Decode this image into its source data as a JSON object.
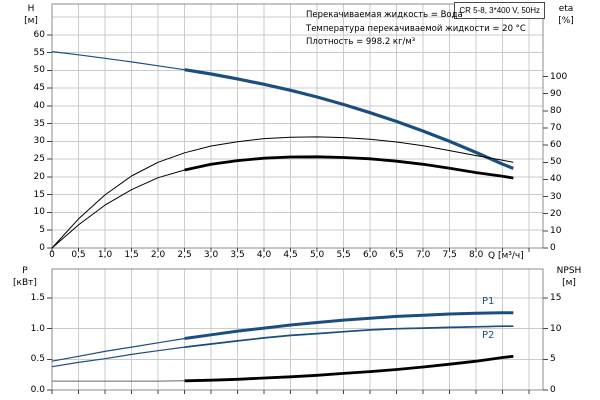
{
  "header": {
    "title": "CR 5-8, 3*400 V, 50Hz"
  },
  "info_lines": [
    "Перекачиваемая жидкость = Вода",
    "Температура перекачиваемой жидкости = 20 °C",
    "Плотность = 998.2 кг/м³"
  ],
  "curve_labels": {
    "p1": "P1",
    "p2": "P2"
  },
  "axes": {
    "h": {
      "name": "H",
      "unit": "[м]"
    },
    "eta": {
      "name": "eta",
      "unit": "[%]"
    },
    "q": {
      "label": "Q [м³/ч]"
    },
    "p": {
      "name": "P",
      "unit": "[кВт]"
    },
    "npsh": {
      "name": "NPSH",
      "unit": "[м]"
    }
  },
  "colors": {
    "curve_blue": "#1b4e80",
    "curve_black": "#000000",
    "npsh_thin": "#666666",
    "grid": "#cbcbcb",
    "frame": "#8c8c8c",
    "tick": "#444444",
    "text": "#000000"
  },
  "chart_data": [
    {
      "type": "line",
      "title": "Pump head and efficiency vs flow",
      "x_axis": {
        "label": "Q [м³/ч]",
        "min": 0,
        "max": 9.26,
        "tick_step": 0.5,
        "tick_labels": [
          "0",
          "0,5",
          "1,0",
          "1,5",
          "2,0",
          "2,5",
          "3,0",
          "3,5",
          "4,0",
          "4,5",
          "5,0",
          "5,5",
          "6,0",
          "6,5",
          "7,0",
          "7,5",
          "8,0"
        ]
      },
      "y_left": {
        "label": "H [м]",
        "min": 0,
        "max": 68.7,
        "ticks": [
          0,
          5,
          10,
          15,
          20,
          25,
          30,
          35,
          40,
          45,
          50,
          55,
          60
        ]
      },
      "y_right": {
        "label": "eta [%]",
        "min": 0,
        "max": 142,
        "ticks": [
          0,
          10,
          20,
          30,
          40,
          50,
          60,
          70,
          80,
          90,
          100
        ]
      },
      "grid": true,
      "series": [
        {
          "name": "H",
          "color": "blue",
          "y_scale": "h",
          "thick_from": 2.5,
          "points": [
            [
              0,
              55.3
            ],
            [
              0.5,
              54.4
            ],
            [
              1,
              53.4
            ],
            [
              1.5,
              52.4
            ],
            [
              2,
              51.3
            ],
            [
              2.5,
              50.2
            ],
            [
              3,
              49.0
            ],
            [
              3.5,
              47.6
            ],
            [
              4,
              46.1
            ],
            [
              4.5,
              44.4
            ],
            [
              5,
              42.5
            ],
            [
              5.5,
              40.4
            ],
            [
              6,
              38.1
            ],
            [
              6.5,
              35.6
            ],
            [
              7,
              32.9
            ],
            [
              7.5,
              30.0
            ],
            [
              8,
              26.9
            ],
            [
              8.5,
              23.6
            ],
            [
              8.7,
              22.4
            ]
          ]
        },
        {
          "name": "eta1",
          "color": "black",
          "y_scale": "eta",
          "thick_from": null,
          "points": [
            [
              0,
              0
            ],
            [
              0.5,
              17
            ],
            [
              1,
              31
            ],
            [
              1.5,
              42
            ],
            [
              2,
              50
            ],
            [
              2.5,
              55.5
            ],
            [
              3,
              59.5
            ],
            [
              3.5,
              62
            ],
            [
              4,
              63.8
            ],
            [
              4.5,
              64.6
            ],
            [
              5,
              64.8
            ],
            [
              5.5,
              64.4
            ],
            [
              6,
              63.4
            ],
            [
              6.5,
              61.8
            ],
            [
              7,
              59.6
            ],
            [
              7.5,
              56.8
            ],
            [
              8,
              53.9
            ],
            [
              8.5,
              51.2
            ],
            [
              8.7,
              50.0
            ]
          ]
        },
        {
          "name": "eta2",
          "color": "black",
          "y_scale": "eta",
          "thick_from": 2.5,
          "points": [
            [
              0,
              0
            ],
            [
              0.5,
              13.5
            ],
            [
              1,
              25
            ],
            [
              1.5,
              34
            ],
            [
              2,
              41
            ],
            [
              2.5,
              45.5
            ],
            [
              3,
              48.8
            ],
            [
              3.5,
              51
            ],
            [
              4,
              52.4
            ],
            [
              4.5,
              53.1
            ],
            [
              5,
              53.2
            ],
            [
              5.5,
              52.8
            ],
            [
              6,
              52.0
            ],
            [
              6.5,
              50.6
            ],
            [
              7,
              48.8
            ],
            [
              7.5,
              46.5
            ],
            [
              8,
              44.0
            ],
            [
              8.5,
              41.8
            ],
            [
              8.7,
              40.8
            ]
          ]
        }
      ]
    },
    {
      "type": "line",
      "title": "Power and NPSH vs flow",
      "x_axis": {
        "label": "Q [м³/ч]",
        "min": 0,
        "max": 9.26,
        "tick_step": 0.5,
        "tick_labels": []
      },
      "y_left": {
        "label": "P [кВт]",
        "min": 0,
        "max": 1.97,
        "ticks": [
          0,
          0.5,
          1,
          1.5
        ],
        "tick_labels": [
          "0.0",
          "0.5",
          "1.0",
          "1.5"
        ]
      },
      "y_right": {
        "label": "NPSH [м]",
        "min": 0,
        "max": 19.7,
        "ticks": [
          0,
          5,
          10,
          15
        ]
      },
      "grid": true,
      "series": [
        {
          "name": "P1",
          "color": "blue",
          "y_scale": "p",
          "thick_from": 2.5,
          "points": [
            [
              0,
              0.47
            ],
            [
              0.5,
              0.55
            ],
            [
              1,
              0.63
            ],
            [
              1.5,
              0.7
            ],
            [
              2,
              0.77
            ],
            [
              2.5,
              0.84
            ],
            [
              3,
              0.9
            ],
            [
              3.5,
              0.96
            ],
            [
              4,
              1.01
            ],
            [
              4.5,
              1.06
            ],
            [
              5,
              1.1
            ],
            [
              5.5,
              1.14
            ],
            [
              6,
              1.17
            ],
            [
              6.5,
              1.2
            ],
            [
              7,
              1.22
            ],
            [
              7.5,
              1.24
            ],
            [
              8,
              1.25
            ],
            [
              8.5,
              1.26
            ],
            [
              8.7,
              1.26
            ]
          ]
        },
        {
          "name": "P2",
          "color": "blue",
          "y_scale": "p",
          "thick_from": 2.5,
          "points": [
            [
              0,
              0.38
            ],
            [
              0.5,
              0.45
            ],
            [
              1,
              0.51
            ],
            [
              1.5,
              0.58
            ],
            [
              2,
              0.64
            ],
            [
              2.5,
              0.7
            ],
            [
              3,
              0.75
            ],
            [
              3.5,
              0.8
            ],
            [
              4,
              0.85
            ],
            [
              4.5,
              0.89
            ],
            [
              5,
              0.92
            ],
            [
              5.5,
              0.95
            ],
            [
              6,
              0.98
            ],
            [
              6.5,
              1.0
            ],
            [
              7,
              1.01
            ],
            [
              7.5,
              1.02
            ],
            [
              8,
              1.03
            ],
            [
              8.5,
              1.04
            ],
            [
              8.7,
              1.04
            ]
          ]
        },
        {
          "name": "NPSH",
          "color": "black",
          "y_scale": "npsh",
          "thick_from": 2.5,
          "points": [
            [
              0,
              1.45
            ],
            [
              0.5,
              1.45
            ],
            [
              1,
              1.45
            ],
            [
              1.5,
              1.45
            ],
            [
              2,
              1.45
            ],
            [
              2.5,
              1.5
            ],
            [
              3,
              1.6
            ],
            [
              3.5,
              1.75
            ],
            [
              4,
              1.95
            ],
            [
              4.5,
              2.15
            ],
            [
              5,
              2.4
            ],
            [
              5.5,
              2.7
            ],
            [
              6,
              3.0
            ],
            [
              6.5,
              3.35
            ],
            [
              7,
              3.75
            ],
            [
              7.5,
              4.2
            ],
            [
              8,
              4.7
            ],
            [
              8.5,
              5.3
            ],
            [
              8.7,
              5.5
            ]
          ]
        }
      ]
    }
  ]
}
